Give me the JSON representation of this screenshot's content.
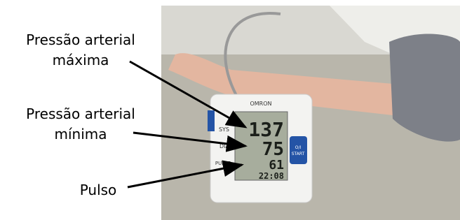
{
  "annotations": [
    {
      "lines": [
        "Pressão arterial",
        "máxima"
      ]
    },
    {
      "lines": [
        "Pressão arterial",
        "mínima"
      ]
    },
    {
      "lines": [
        "Pulso"
      ]
    }
  ],
  "device": {
    "brand": "OMRON",
    "side_labels": [
      "SYS",
      "DIA",
      "PULSE"
    ],
    "button": [
      "O/I",
      "START"
    ],
    "display": {
      "systolic": "137",
      "diastolic": "75",
      "pulse": "61",
      "time": "22:08"
    }
  }
}
